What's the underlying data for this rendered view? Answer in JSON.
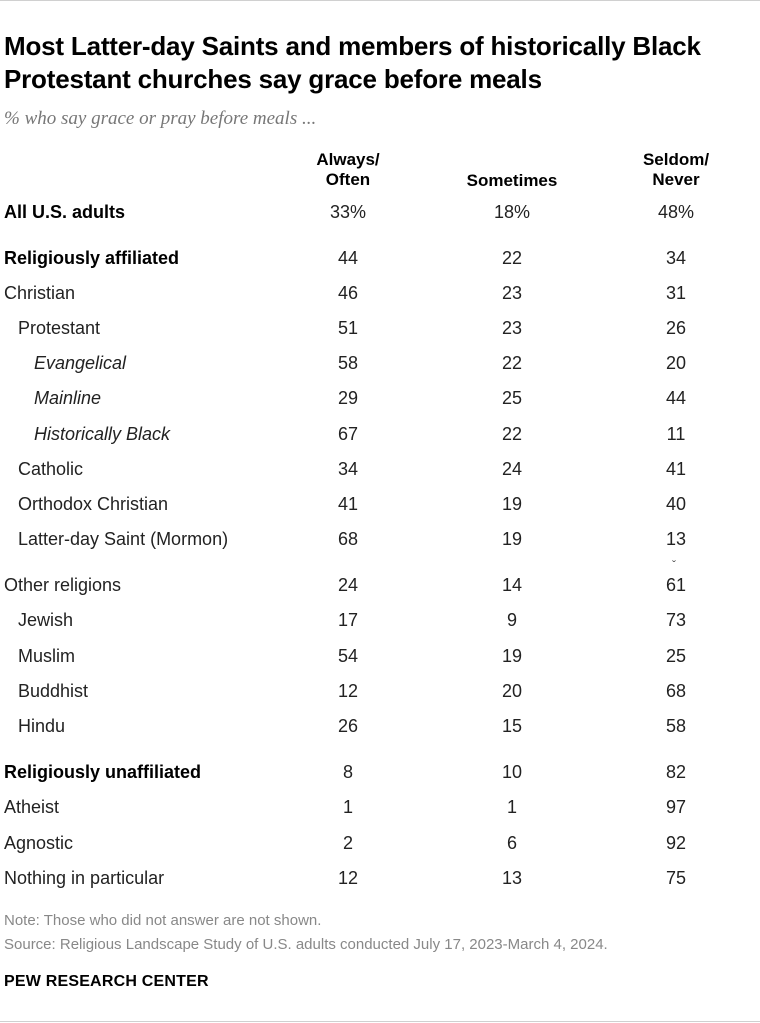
{
  "title": "Most Latter-day Saints and members of historically Black Protestant churches say grace before meals",
  "subtitle": "% who say grace or pray before meals ...",
  "columns": [
    {
      "line1": "Always/",
      "line2": "Often"
    },
    {
      "line1": "Sometimes",
      "line2": ""
    },
    {
      "line1": "Seldom/",
      "line2": "Never"
    }
  ],
  "chart_data": {
    "type": "table",
    "columns": [
      "Always/Often",
      "Sometimes",
      "Seldom/Never"
    ],
    "rows": [
      {
        "label": "All U.S. adults",
        "values": [
          "33%",
          "18%",
          "48%"
        ]
      },
      {
        "label": "Religiously affiliated",
        "values": [
          "44",
          "22",
          "34"
        ]
      },
      {
        "label": "Christian",
        "values": [
          "46",
          "23",
          "31"
        ]
      },
      {
        "label": "Protestant",
        "values": [
          "51",
          "23",
          "26"
        ]
      },
      {
        "label": "Evangelical",
        "values": [
          "58",
          "22",
          "20"
        ]
      },
      {
        "label": "Mainline",
        "values": [
          "29",
          "25",
          "44"
        ]
      },
      {
        "label": "Historically Black",
        "values": [
          "67",
          "22",
          "11"
        ]
      },
      {
        "label": "Catholic",
        "values": [
          "34",
          "24",
          "41"
        ]
      },
      {
        "label": "Orthodox Christian",
        "values": [
          "41",
          "19",
          "40"
        ]
      },
      {
        "label": "Latter-day Saint (Mormon)",
        "values": [
          "68",
          "19",
          "13"
        ]
      },
      {
        "label": "Other religions",
        "values": [
          "24",
          "14",
          "61"
        ]
      },
      {
        "label": "Jewish",
        "values": [
          "17",
          "9",
          "73"
        ]
      },
      {
        "label": "Muslim",
        "values": [
          "54",
          "19",
          "25"
        ]
      },
      {
        "label": "Buddhist",
        "values": [
          "12",
          "20",
          "68"
        ]
      },
      {
        "label": "Hindu",
        "values": [
          "26",
          "15",
          "58"
        ]
      },
      {
        "label": "Religiously unaffiliated",
        "values": [
          "8",
          "10",
          "82"
        ]
      },
      {
        "label": "Atheist",
        "values": [
          "1",
          "1",
          "97"
        ]
      },
      {
        "label": "Agnostic",
        "values": [
          "2",
          "6",
          "92"
        ]
      },
      {
        "label": "Nothing in particular",
        "values": [
          "12",
          "13",
          "75"
        ]
      }
    ]
  },
  "note": "Note: Those who did not answer are not shown.",
  "source": "Source: Religious Landscape Study of U.S. adults conducted July 17, 2023-March 4, 2024.",
  "brand": "PEW RESEARCH CENTER"
}
